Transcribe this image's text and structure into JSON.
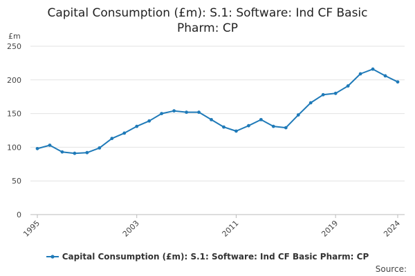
{
  "chart": {
    "title": "Capital Consumption (£m): S.1: Software: Ind CF Basic Pharm: CP",
    "y_unit": "£m",
    "source": "Source:",
    "line_color": "#1f7ab8",
    "grid_color": "#e2e2e2"
  },
  "chart_data": {
    "type": "line",
    "title": "Capital Consumption (£m): S.1: Software: Ind CF Basic Pharm: CP",
    "xlabel": "",
    "ylabel": "£m",
    "ylim": [
      0,
      250
    ],
    "xlim": [
      1995,
      2024
    ],
    "y_ticks": [
      0,
      50,
      100,
      150,
      200,
      250
    ],
    "x_ticks": [
      1995,
      2003,
      2011,
      2019,
      2024
    ],
    "grid": true,
    "legend_position": "bottom",
    "series": [
      {
        "name": "Capital Consumption (£m): S.1: Software: Ind CF Basic Pharm: CP",
        "x": [
          1995,
          1996,
          1997,
          1998,
          1999,
          2000,
          2001,
          2002,
          2003,
          2004,
          2005,
          2006,
          2007,
          2008,
          2009,
          2010,
          2011,
          2012,
          2013,
          2014,
          2015,
          2016,
          2017,
          2018,
          2019,
          2020,
          2021,
          2022,
          2023,
          2024
        ],
        "values": [
          98,
          103,
          93,
          91,
          92,
          99,
          113,
          121,
          131,
          139,
          150,
          154,
          152,
          152,
          141,
          130,
          124,
          132,
          141,
          131,
          129,
          148,
          166,
          178,
          180,
          191,
          209,
          216,
          206,
          197
        ]
      }
    ]
  }
}
